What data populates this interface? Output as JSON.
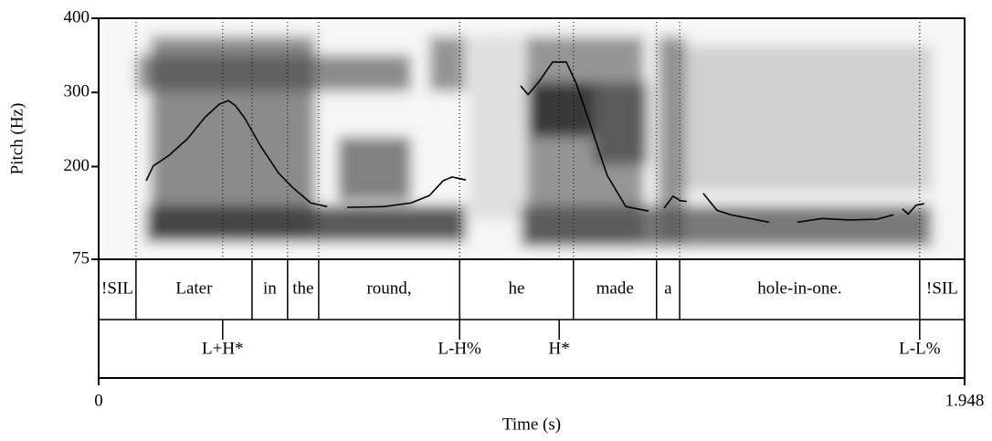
{
  "chart_data": {
    "type": "line",
    "ylabel": "Pitch (Hz)",
    "xlabel": "Time (s)",
    "xlim": [
      0,
      1.948
    ],
    "xticks": [
      0,
      1.948
    ],
    "ylim": [
      75,
      400
    ],
    "yticks": [
      75,
      200,
      300,
      400
    ],
    "series": [
      {
        "color": "#000000",
        "x": [
          0.107,
          0.123,
          0.158,
          0.199,
          0.24,
          0.271,
          0.292,
          0.308,
          0.329,
          0.364,
          0.405,
          0.436,
          0.477,
          0.514,
          null,
          0.559,
          0.641,
          0.703,
          0.744,
          0.775,
          0.795,
          0.826,
          null,
          0.949,
          0.966,
          0.99,
          1.021,
          1.052,
          1.073,
          1.103,
          1.144,
          1.186,
          1.237,
          null,
          1.272,
          1.292,
          1.309,
          1.323,
          null,
          1.36,
          1.391,
          1.422,
          1.508,
          null,
          1.572,
          1.627,
          1.689,
          1.751,
          1.788,
          null,
          1.808,
          1.821,
          1.839,
          1.857
        ],
        "values": [
          181,
          201,
          215,
          237,
          267,
          284,
          289,
          282,
          265,
          228,
          191,
          172,
          151,
          146,
          null,
          145,
          146,
          151,
          161,
          181,
          186,
          182,
          null,
          309,
          297,
          314,
          341,
          341,
          314,
          262,
          188,
          146,
          140,
          null,
          144,
          160,
          154,
          153,
          null,
          164,
          141,
          135,
          125,
          null,
          125,
          130,
          128,
          129,
          135,
          null,
          143,
          136,
          148,
          150
        ]
      }
    ],
    "word_tier": {
      "boundaries": [
        0.084,
        0.345,
        0.425,
        0.495,
        0.812,
        1.068,
        1.255,
        1.307,
        1.847
      ],
      "labels": [
        "!SIL",
        "Later",
        "in",
        "the",
        "round,",
        "he",
        "made",
        "a",
        "hole-in-one.",
        "!SIL"
      ]
    },
    "tone_tier": {
      "times": [
        0.279,
        0.812,
        1.036,
        1.847
      ],
      "labels": [
        "L+H*",
        "L-H%",
        "H*",
        "L-L%"
      ]
    }
  }
}
